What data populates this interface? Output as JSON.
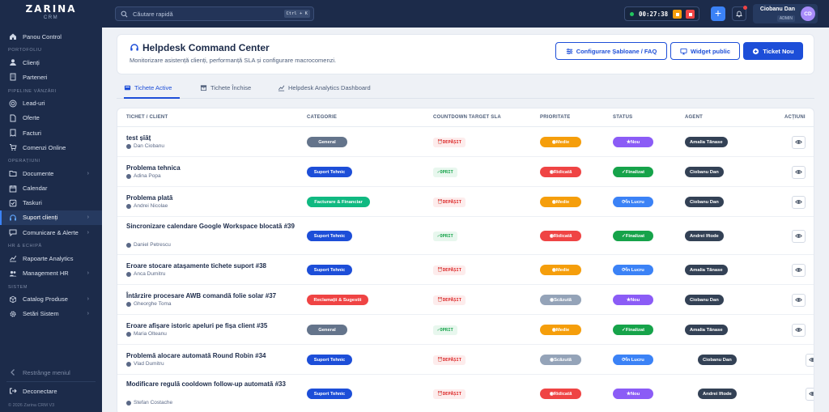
{
  "app": {
    "brand": "ZARINA",
    "brand_sub": "CRM",
    "copyright": "© 2026 Zarina CRM V3"
  },
  "sidebar": {
    "top": [
      {
        "label": "Panou Control",
        "icon": "home-icon"
      }
    ],
    "sections": [
      {
        "title": "PORTOFOLIU",
        "items": [
          {
            "label": "Clienți",
            "icon": "user-icon"
          },
          {
            "label": "Parteneri",
            "icon": "building-icon"
          }
        ]
      },
      {
        "title": "PIPELINE VÂNZĂRI",
        "items": [
          {
            "label": "Lead-uri",
            "icon": "target-icon"
          },
          {
            "label": "Oferte",
            "icon": "file-icon"
          },
          {
            "label": "Facturi",
            "icon": "receipt-icon"
          },
          {
            "label": "Comenzi Online",
            "icon": "cart-icon"
          }
        ]
      },
      {
        "title": "OPERAȚIUNI",
        "items": [
          {
            "label": "Documente",
            "icon": "folder-icon",
            "chevron": true
          },
          {
            "label": "Calendar",
            "icon": "calendar-icon"
          },
          {
            "label": "Taskuri",
            "icon": "check-icon"
          },
          {
            "label": "Suport clienți",
            "icon": "headset-icon",
            "chevron": true,
            "active": true
          },
          {
            "label": "Comunicare & Alerte",
            "icon": "chat-icon",
            "chevron": true
          }
        ]
      },
      {
        "title": "HR & ECHIPĂ",
        "items": [
          {
            "label": "Rapoarte Analytics",
            "icon": "chart-icon"
          },
          {
            "label": "Management HR",
            "icon": "users-icon",
            "chevron": true
          }
        ]
      },
      {
        "title": "SISTEM",
        "items": [
          {
            "label": "Catalog Produse",
            "icon": "box-icon",
            "chevron": true
          },
          {
            "label": "Setări Sistem",
            "icon": "gear-icon",
            "chevron": true
          }
        ]
      }
    ],
    "collapse_label": "Restrânge meniul",
    "logout_label": "Deconectare"
  },
  "topbar": {
    "search_placeholder": "Căutare rapidă",
    "search_shortcut": "Ctrl + K",
    "timer": "00:27:38",
    "user_name": "Ciobanu Dan",
    "user_role": "ADMIN",
    "user_initials": "CD"
  },
  "header": {
    "title": "Helpdesk Command Center",
    "subtitle": "Monitorizare asistență clienți, performanță SLA și configurare macrocomenzi.",
    "btn_templates": "Configurare Șabloane / FAQ",
    "btn_widget": "Widget public",
    "btn_new": "Ticket Nou"
  },
  "tabs": {
    "active": "Tichete Active",
    "closed": "Tichete Închise",
    "analytics": "Helpdesk Analytics Dashboard"
  },
  "table": {
    "columns": {
      "ticket": "TICHET / CLIENT",
      "category": "CATEGORIE",
      "sla": "COUNTDOWN TARGET SLA",
      "priority": "PRIORITATE",
      "status": "STATUS",
      "agent": "AGENT",
      "actions": "ACȚIUNI"
    },
    "rows": [
      {
        "title": "test șîăț",
        "client": "Dan Ciobanu",
        "category": "General",
        "sla": "DEPĂȘIT",
        "priority": "Medie",
        "status": "Nou",
        "agent": "Amalia Tănase"
      },
      {
        "title": "Problema tehnica",
        "client": "Adina Popa",
        "category": "Suport Tehnic",
        "sla": "OPRIT",
        "priority": "Ridicată",
        "status": "Finalizat",
        "agent": "Ciobanu Dan"
      },
      {
        "title": "Problema plată",
        "client": "Andrei Nicolae",
        "category": "Facturare & Financiar",
        "sla": "DEPĂȘIT",
        "priority": "Medie",
        "status": "În Lucru",
        "agent": "Ciobanu Dan"
      },
      {
        "title": "Sincronizare calendare Google Workspace blocată #39",
        "client": "Daniel Petrescu",
        "category": "Suport Tehnic",
        "sla": "OPRIT",
        "priority": "Ridicată",
        "status": "Finalizat",
        "agent": "Andrei Iftode"
      },
      {
        "title": "Eroare stocare atașamente tichete suport #38",
        "client": "Anca Dumitru",
        "category": "Suport Tehnic",
        "sla": "DEPĂȘIT",
        "priority": "Medie",
        "status": "În Lucru",
        "agent": "Amalia Tănase"
      },
      {
        "title": "Întârzire procesare AWB comandă folie solar #37",
        "client": "Gheorghe Toma",
        "category": "Reclamații & Sugestii",
        "sla": "DEPĂȘIT",
        "priority": "Scăzută",
        "status": "Nou",
        "agent": "Ciobanu Dan"
      },
      {
        "title": "Eroare afișare istoric apeluri pe fișa client #35",
        "client": "Maria Olteanu",
        "category": "General",
        "sla": "OPRIT",
        "priority": "Medie",
        "status": "Finalizat",
        "agent": "Amalia Tănase"
      },
      {
        "title": "Problemă alocare automată Round Robin #34",
        "client": "Vlad Dumitru",
        "category": "Suport Tehnic",
        "sla": "DEPĂȘIT",
        "priority": "Scăzută",
        "status": "În Lucru",
        "agent": "Ciobanu Dan"
      },
      {
        "title": "Modificare regulă cooldown follow-up automată #33",
        "client": "Stefan Costache",
        "category": "Suport Tehnic",
        "sla": "DEPĂȘIT",
        "priority": "Ridicată",
        "status": "Nou",
        "agent": "Andrei Iftode"
      }
    ]
  },
  "colors": {
    "sidebar_bg": "#1c2b4a",
    "accent": "#1d4ed8",
    "category": {
      "General": "#64748b",
      "Suport Tehnic": "#1d4ed8",
      "Facturare & Financiar": "#10b981",
      "Reclamații & Sugestii": "#ef4444"
    },
    "priority": {
      "Medie": "#f59e0b",
      "Ridicată": "#ef4444",
      "Scăzută": "#94a3b8"
    },
    "status": {
      "Nou": "#8b5cf6",
      "Finalizat": "#16a34a",
      "În Lucru": "#3b82f6"
    },
    "agent": "#334155"
  }
}
